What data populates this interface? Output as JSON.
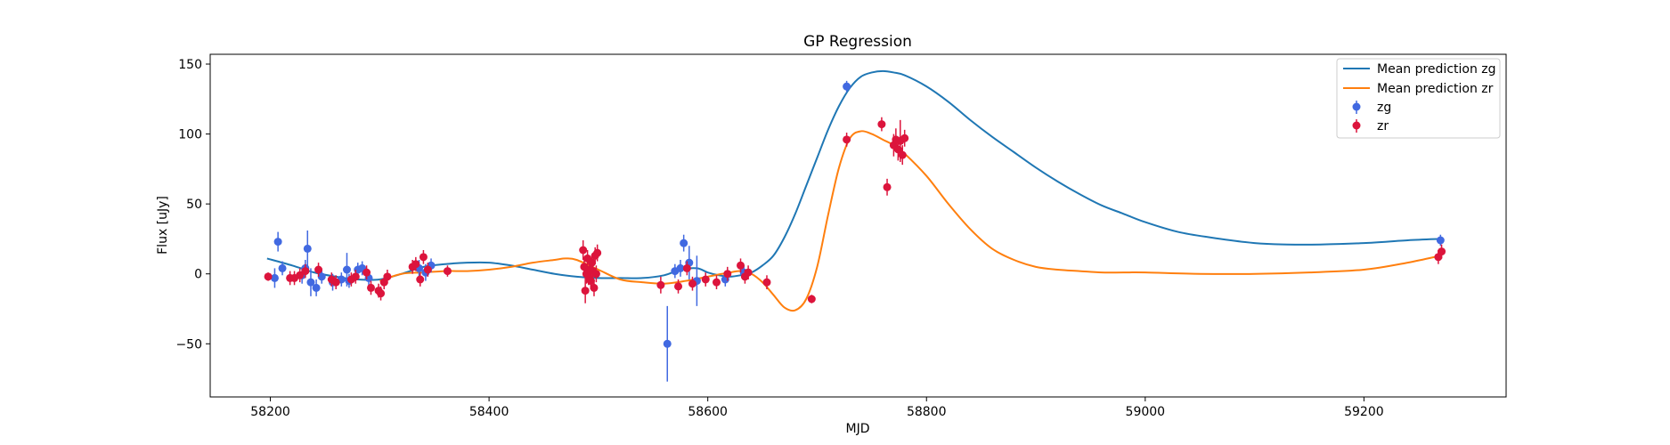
{
  "chart_data": {
    "type": "scatter",
    "title": "GP Regression",
    "xlabel": "MJD",
    "ylabel": "Flux [uJy]",
    "xlim": [
      58145,
      59330
    ],
    "ylim": [
      -88,
      157
    ],
    "xticks": [
      58200,
      58400,
      58600,
      58800,
      59000,
      59200
    ],
    "yticks": [
      -50,
      0,
      50,
      100,
      150
    ],
    "legend_position": "top-right",
    "colors": {
      "zg_line": "#1f77b4",
      "zr_line": "#ff7f0e",
      "zg_points": "#4169e1",
      "zr_points": "#dc143c"
    },
    "lines": [
      {
        "name": "Mean prediction zg",
        "x": [
          58197,
          58220,
          58240,
          58260,
          58280,
          58300,
          58320,
          58340,
          58360,
          58380,
          58400,
          58420,
          58440,
          58460,
          58480,
          58500,
          58520,
          58540,
          58560,
          58575,
          58590,
          58600,
          58610,
          58620,
          58630,
          58640,
          58650,
          58660,
          58670,
          58680,
          58690,
          58700,
          58710,
          58720,
          58730,
          58740,
          58750,
          58760,
          58770,
          58780,
          58800,
          58820,
          58840,
          58860,
          58880,
          58900,
          58920,
          58940,
          58960,
          58980,
          59000,
          59030,
          59060,
          59100,
          59130,
          59160,
          59200,
          59240,
          59270
        ],
        "y": [
          11,
          6,
          1,
          -2,
          -4,
          -4,
          0,
          5,
          7,
          8,
          8,
          6,
          3,
          0,
          -2,
          -3,
          -3,
          -3,
          -1,
          3,
          4,
          1,
          -1,
          -2,
          -1,
          1,
          6,
          13,
          26,
          43,
          63,
          83,
          103,
          120,
          133,
          141,
          144,
          145,
          144,
          142,
          134,
          123,
          110,
          98,
          87,
          76,
          66,
          57,
          49,
          43,
          37,
          30,
          26,
          22,
          21,
          21,
          22,
          24,
          25
        ]
      },
      {
        "name": "Mean prediction zr",
        "x": [
          58300,
          58320,
          58340,
          58360,
          58380,
          58400,
          58420,
          58440,
          58460,
          58470,
          58480,
          58500,
          58520,
          58540,
          58560,
          58580,
          58600,
          58620,
          58630,
          58640,
          58650,
          58660,
          58670,
          58680,
          58690,
          58700,
          58710,
          58720,
          58730,
          58740,
          58750,
          58760,
          58770,
          58780,
          58800,
          58820,
          58840,
          58860,
          58880,
          58900,
          58920,
          58940,
          58960,
          58980,
          59000,
          59050,
          59100,
          59150,
          59200,
          59240,
          59270
        ],
        "y": [
          -5,
          0,
          1,
          2,
          2,
          3,
          5,
          8,
          10,
          11,
          10,
          3,
          -4,
          -6,
          -7,
          -5,
          -2,
          1,
          2,
          0,
          -6,
          -15,
          -24,
          -26,
          -18,
          5,
          42,
          76,
          97,
          102,
          100,
          96,
          92,
          86,
          70,
          50,
          32,
          18,
          10,
          5,
          3,
          2,
          1,
          1,
          1,
          0,
          0,
          1,
          3,
          8,
          13
        ]
      }
    ],
    "series": [
      {
        "name": "zg",
        "points": [
          {
            "x": 58204,
            "y": -3,
            "err": 7
          },
          {
            "x": 58207,
            "y": 23,
            "err": 7
          },
          {
            "x": 58211,
            "y": 4,
            "err": 5
          },
          {
            "x": 58229,
            "y": -1,
            "err": 6
          },
          {
            "x": 58232,
            "y": 4,
            "err": 6
          },
          {
            "x": 58234,
            "y": 18,
            "err": 13
          },
          {
            "x": 58237,
            "y": -6,
            "err": 10
          },
          {
            "x": 58242,
            "y": -10,
            "err": 6
          },
          {
            "x": 58247,
            "y": -2,
            "err": 5
          },
          {
            "x": 58257,
            "y": -6,
            "err": 6
          },
          {
            "x": 58265,
            "y": -4,
            "err": 5
          },
          {
            "x": 58270,
            "y": 3,
            "err": 12
          },
          {
            "x": 58272,
            "y": -5,
            "err": 5
          },
          {
            "x": 58280,
            "y": 3,
            "err": 5
          },
          {
            "x": 58284,
            "y": 4,
            "err": 5
          },
          {
            "x": 58290,
            "y": -3,
            "err": 6
          },
          {
            "x": 58336,
            "y": 4,
            "err": 6
          },
          {
            "x": 58342,
            "y": 1,
            "err": 6
          },
          {
            "x": 58347,
            "y": 6,
            "err": 5
          },
          {
            "x": 58563,
            "y": -50,
            "err": 27
          },
          {
            "x": 58570,
            "y": 2,
            "err": 5
          },
          {
            "x": 58575,
            "y": 4,
            "err": 6
          },
          {
            "x": 58578,
            "y": 22,
            "err": 6
          },
          {
            "x": 58583,
            "y": 8,
            "err": 12
          },
          {
            "x": 58590,
            "y": -5,
            "err": 18
          },
          {
            "x": 58616,
            "y": -4,
            "err": 5
          },
          {
            "x": 58633,
            "y": 1,
            "err": 5
          },
          {
            "x": 58727,
            "y": 134,
            "err": 4
          },
          {
            "x": 59270,
            "y": 24,
            "err": 4
          }
        ]
      },
      {
        "name": "zr",
        "points": [
          {
            "x": 58198,
            "y": -2,
            "err": 3
          },
          {
            "x": 58218,
            "y": -3,
            "err": 5
          },
          {
            "x": 58222,
            "y": -3,
            "err": 5
          },
          {
            "x": 58227,
            "y": -1,
            "err": 5
          },
          {
            "x": 58232,
            "y": 2,
            "err": 5
          },
          {
            "x": 58244,
            "y": 3,
            "err": 5
          },
          {
            "x": 58256,
            "y": -4,
            "err": 5
          },
          {
            "x": 58260,
            "y": -6,
            "err": 5
          },
          {
            "x": 58274,
            "y": -4,
            "err": 5
          },
          {
            "x": 58278,
            "y": -2,
            "err": 5
          },
          {
            "x": 58288,
            "y": 1,
            "err": 5
          },
          {
            "x": 58292,
            "y": -10,
            "err": 5
          },
          {
            "x": 58299,
            "y": -12,
            "err": 5
          },
          {
            "x": 58301,
            "y": -14,
            "err": 5
          },
          {
            "x": 58304,
            "y": -6,
            "err": 5
          },
          {
            "x": 58307,
            "y": -2,
            "err": 5
          },
          {
            "x": 58330,
            "y": 5,
            "err": 5
          },
          {
            "x": 58333,
            "y": 7,
            "err": 5
          },
          {
            "x": 58337,
            "y": -4,
            "err": 5
          },
          {
            "x": 58340,
            "y": 12,
            "err": 5
          },
          {
            "x": 58344,
            "y": 3,
            "err": 5
          },
          {
            "x": 58362,
            "y": 2,
            "err": 4
          },
          {
            "x": 58486,
            "y": 17,
            "err": 7
          },
          {
            "x": 58487,
            "y": 5,
            "err": 7
          },
          {
            "x": 58488,
            "y": -12,
            "err": 9
          },
          {
            "x": 58489,
            "y": 0,
            "err": 7
          },
          {
            "x": 58490,
            "y": 11,
            "err": 6
          },
          {
            "x": 58491,
            "y": -2,
            "err": 6
          },
          {
            "x": 58492,
            "y": 3,
            "err": 6
          },
          {
            "x": 58493,
            "y": -5,
            "err": 6
          },
          {
            "x": 58494,
            "y": 8,
            "err": 6
          },
          {
            "x": 58495,
            "y": 2,
            "err": 6
          },
          {
            "x": 58496,
            "y": -10,
            "err": 6
          },
          {
            "x": 58497,
            "y": 13,
            "err": 6
          },
          {
            "x": 58498,
            "y": 0,
            "err": 6
          },
          {
            "x": 58499,
            "y": 15,
            "err": 6
          },
          {
            "x": 58557,
            "y": -8,
            "err": 6
          },
          {
            "x": 58573,
            "y": -9,
            "err": 5
          },
          {
            "x": 58581,
            "y": 4,
            "err": 5
          },
          {
            "x": 58586,
            "y": -7,
            "err": 5
          },
          {
            "x": 58598,
            "y": -4,
            "err": 5
          },
          {
            "x": 58608,
            "y": -6,
            "err": 5
          },
          {
            "x": 58618,
            "y": 0,
            "err": 5
          },
          {
            "x": 58630,
            "y": 6,
            "err": 5
          },
          {
            "x": 58634,
            "y": -2,
            "err": 5
          },
          {
            "x": 58637,
            "y": 1,
            "err": 5
          },
          {
            "x": 58654,
            "y": -6,
            "err": 5
          },
          {
            "x": 58695,
            "y": -18,
            "err": 3
          },
          {
            "x": 58727,
            "y": 96,
            "err": 5
          },
          {
            "x": 58759,
            "y": 107,
            "err": 5
          },
          {
            "x": 58764,
            "y": 62,
            "err": 6
          },
          {
            "x": 58770,
            "y": 92,
            "err": 8
          },
          {
            "x": 58772,
            "y": 96,
            "err": 8
          },
          {
            "x": 58774,
            "y": 89,
            "err": 8
          },
          {
            "x": 58776,
            "y": 95,
            "err": 15
          },
          {
            "x": 58778,
            "y": 85,
            "err": 7
          },
          {
            "x": 58780,
            "y": 97,
            "err": 6
          },
          {
            "x": 59268,
            "y": 12,
            "err": 5
          },
          {
            "x": 59271,
            "y": 16,
            "err": 5
          }
        ]
      }
    ]
  }
}
